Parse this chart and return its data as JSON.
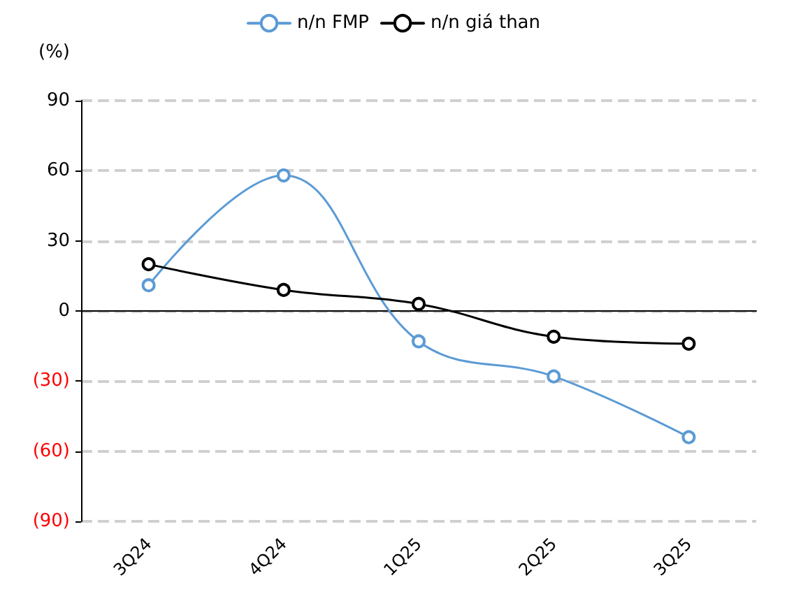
{
  "chart_data": {
    "type": "line",
    "ylabel": "(%)",
    "categories": [
      "3Q24",
      "4Q24",
      "1Q25",
      "2Q25",
      "3Q25"
    ],
    "series": [
      {
        "name": "n/n FMP",
        "color": "#5b9bd5",
        "values": [
          11,
          58,
          -13,
          -28,
          -54
        ]
      },
      {
        "name": "n/n giá than",
        "color": "#000000",
        "values": [
          20,
          9,
          3,
          -11,
          -14
        ]
      }
    ],
    "ylim": [
      -90,
      90
    ],
    "yticks": [
      {
        "value": -90,
        "label": "(90)"
      },
      {
        "value": -60,
        "label": "(60)"
      },
      {
        "value": -30,
        "label": "(30)"
      },
      0,
      30,
      60,
      90
    ],
    "grid": "y",
    "legend": "top",
    "marker": "circle",
    "line_style": "solid"
  }
}
